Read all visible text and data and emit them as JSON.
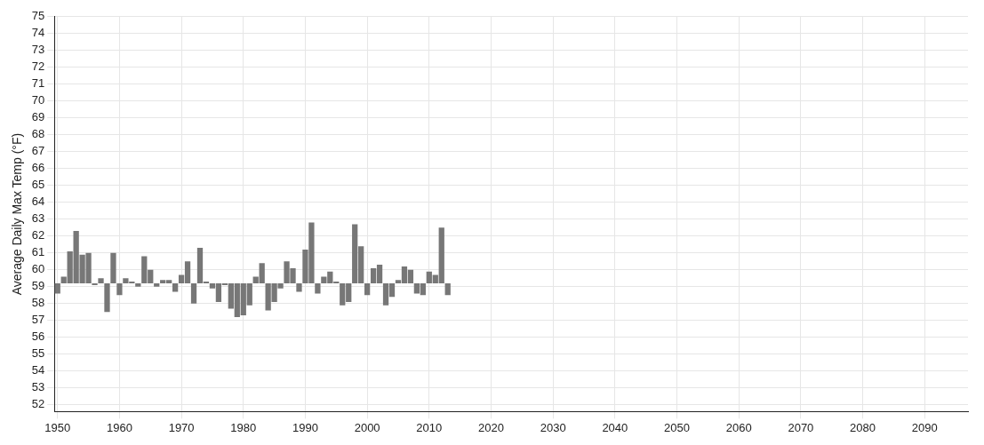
{
  "chart_data": {
    "type": "bar",
    "ylabel": "Average Daily Max Temp (°F)",
    "x": [
      1950,
      1951,
      1952,
      1953,
      1954,
      1955,
      1956,
      1957,
      1958,
      1959,
      1960,
      1961,
      1962,
      1963,
      1964,
      1965,
      1966,
      1967,
      1968,
      1969,
      1970,
      1971,
      1972,
      1973,
      1974,
      1975,
      1976,
      1977,
      1978,
      1979,
      1980,
      1981,
      1982,
      1983,
      1984,
      1985,
      1986,
      1987,
      1988,
      1989,
      1990,
      1991,
      1992,
      1993,
      1994,
      1995,
      1996,
      1997,
      1998,
      1999,
      2000,
      2001,
      2002,
      2003,
      2004,
      2005,
      2006,
      2007,
      2008,
      2009,
      2010,
      2011,
      2012,
      2013
    ],
    "values": [
      -0.6,
      0.4,
      1.9,
      3.1,
      1.7,
      1.8,
      -0.1,
      0.3,
      -1.7,
      1.8,
      -0.7,
      0.3,
      0.1,
      -0.2,
      1.6,
      0.8,
      -0.2,
      0.2,
      0.2,
      -0.5,
      0.5,
      1.3,
      -1.2,
      2.1,
      0.1,
      -0.3,
      -1.1,
      -0.1,
      -1.5,
      -2.0,
      -1.9,
      -1.3,
      0.4,
      1.2,
      -1.6,
      -1.1,
      -0.3,
      1.3,
      0.9,
      -0.5,
      2.0,
      3.6,
      -0.6,
      0.4,
      0.7,
      0.1,
      -1.3,
      -1.1,
      3.5,
      2.2,
      -0.7,
      0.9,
      1.1,
      -1.3,
      -0.8,
      0.2,
      1.0,
      0.8,
      -0.6,
      -0.7,
      0.7,
      0.5,
      3.3,
      -0.7
    ],
    "base": [
      59.2,
      59.2,
      59.2,
      59.2,
      59.2,
      59.2,
      59.2,
      59.2,
      59.2,
      59.2,
      59.2,
      59.2,
      59.2,
      59.2,
      59.2,
      59.2,
      59.2,
      59.2,
      59.2,
      59.2,
      59.2,
      59.2,
      59.2,
      59.2,
      59.2,
      59.2,
      59.2,
      59.2,
      59.2,
      59.2,
      59.2,
      59.2,
      59.2,
      59.2,
      59.2,
      59.2,
      59.2,
      59.2,
      59.2,
      59.2,
      59.2,
      59.2,
      59.2,
      59.2,
      59.2,
      59.2,
      59.2,
      59.2,
      59.2,
      59.2,
      59.2,
      59.2,
      59.2,
      59.2,
      59.2,
      59.2,
      59.2,
      59.2,
      59.2,
      59.2,
      59.2,
      59.2,
      59.2,
      59.2
    ],
    "color": "#777777",
    "xlim": [
      1949.5,
      2097
    ],
    "xticks": [
      1950,
      1960,
      1970,
      1980,
      1990,
      2000,
      2010,
      2020,
      2030,
      2040,
      2050,
      2060,
      2070,
      2080,
      2090
    ],
    "ylim": [
      51.6,
      75
    ],
    "yticks": [
      52,
      53,
      54,
      55,
      56,
      57,
      58,
      59,
      60,
      61,
      62,
      63,
      64,
      65,
      66,
      67,
      68,
      69,
      70,
      71,
      72,
      73,
      74,
      75
    ],
    "grid": true,
    "legend": false
  }
}
